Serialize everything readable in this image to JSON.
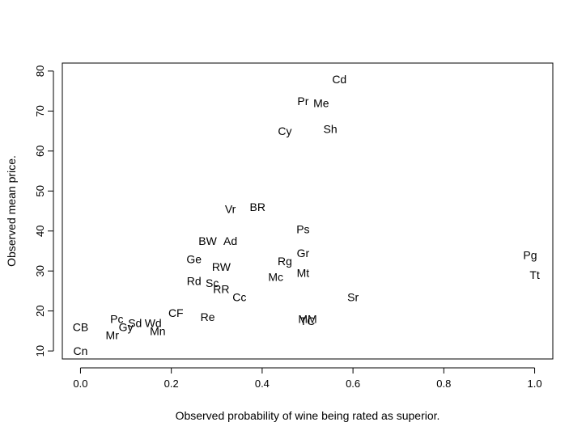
{
  "chart_data": {
    "type": "scatter",
    "title": "",
    "xlabel": "Observed probability of wine being rated as superior.",
    "ylabel": "Observed mean price.",
    "xlim": [
      -0.04,
      1.04
    ],
    "ylim": [
      8,
      82
    ],
    "x_ticks": [
      "0.0",
      "0.2",
      "0.4",
      "0.6",
      "0.8",
      "1.0"
    ],
    "y_ticks": [
      "10",
      "20",
      "30",
      "40",
      "50",
      "60",
      "70",
      "80"
    ],
    "grid": false,
    "marker": "text-label",
    "points": [
      {
        "label": "Cd",
        "x": 0.57,
        "y": 78
      },
      {
        "label": "Pr",
        "x": 0.49,
        "y": 72.5
      },
      {
        "label": "Me",
        "x": 0.53,
        "y": 72
      },
      {
        "label": "Cy",
        "x": 0.45,
        "y": 65
      },
      {
        "label": "Sh",
        "x": 0.55,
        "y": 65.5
      },
      {
        "label": "Vr",
        "x": 0.33,
        "y": 45.5
      },
      {
        "label": "BR",
        "x": 0.39,
        "y": 46
      },
      {
        "label": "Ps",
        "x": 0.49,
        "y": 40.5
      },
      {
        "label": "BW",
        "x": 0.28,
        "y": 37.5
      },
      {
        "label": "Ad",
        "x": 0.33,
        "y": 37.5
      },
      {
        "label": "Gr",
        "x": 0.49,
        "y": 34.5
      },
      {
        "label": "Pg",
        "x": 0.99,
        "y": 34
      },
      {
        "label": "Ge",
        "x": 0.25,
        "y": 33
      },
      {
        "label": "Rg",
        "x": 0.45,
        "y": 32.5
      },
      {
        "label": "RW",
        "x": 0.31,
        "y": 31
      },
      {
        "label": "Mt",
        "x": 0.49,
        "y": 29.5
      },
      {
        "label": "Tt",
        "x": 1.0,
        "y": 29
      },
      {
        "label": "Mc",
        "x": 0.43,
        "y": 28.5
      },
      {
        "label": "Rd",
        "x": 0.25,
        "y": 27.5
      },
      {
        "label": "Sc",
        "x": 0.29,
        "y": 27
      },
      {
        "label": "RR",
        "x": 0.31,
        "y": 25.5
      },
      {
        "label": "Cc",
        "x": 0.35,
        "y": 23.5
      },
      {
        "label": "Sr",
        "x": 0.6,
        "y": 23.5
      },
      {
        "label": "CF",
        "x": 0.21,
        "y": 19.5
      },
      {
        "label": "Pc",
        "x": 0.08,
        "y": 18
      },
      {
        "label": "Re",
        "x": 0.28,
        "y": 18.5
      },
      {
        "label": "Sd",
        "x": 0.12,
        "y": 17
      },
      {
        "label": "Wd",
        "x": 0.16,
        "y": 17
      },
      {
        "label": "MM",
        "x": 0.5,
        "y": 18
      },
      {
        "label": "TC",
        "x": 0.5,
        "y": 17.5
      },
      {
        "label": "Gy",
        "x": 0.1,
        "y": 16
      },
      {
        "label": "CB",
        "x": 0.0,
        "y": 16
      },
      {
        "label": "Mn",
        "x": 0.17,
        "y": 15
      },
      {
        "label": "Mr",
        "x": 0.07,
        "y": 14
      },
      {
        "label": "Cn",
        "x": 0.0,
        "y": 10
      }
    ]
  }
}
